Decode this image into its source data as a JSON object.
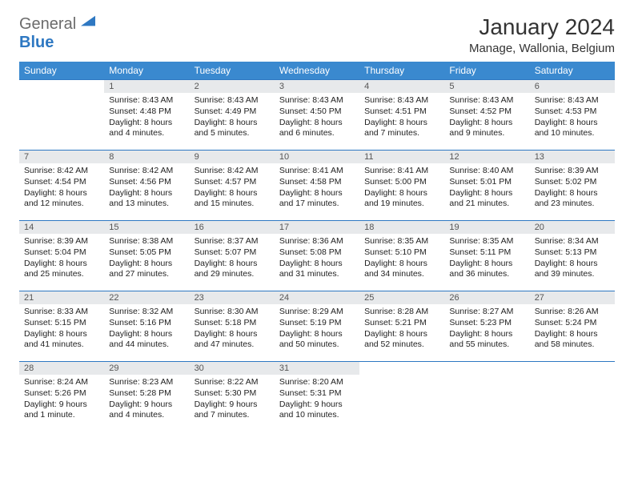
{
  "logo": {
    "general": "General",
    "blue": "Blue"
  },
  "title": "January 2024",
  "location": "Manage, Wallonia, Belgium",
  "header_color": "#3a89cf",
  "accent_line_color": "#2e78c2",
  "daynum_bg": "#e7e9eb",
  "weekdays": [
    "Sunday",
    "Monday",
    "Tuesday",
    "Wednesday",
    "Thursday",
    "Friday",
    "Saturday"
  ],
  "columns": 7,
  "first_day_offset": 1,
  "days": [
    {
      "n": "1",
      "sr": "Sunrise: 8:43 AM",
      "ss": "Sunset: 4:48 PM",
      "dl": "Daylight: 8 hours and 4 minutes."
    },
    {
      "n": "2",
      "sr": "Sunrise: 8:43 AM",
      "ss": "Sunset: 4:49 PM",
      "dl": "Daylight: 8 hours and 5 minutes."
    },
    {
      "n": "3",
      "sr": "Sunrise: 8:43 AM",
      "ss": "Sunset: 4:50 PM",
      "dl": "Daylight: 8 hours and 6 minutes."
    },
    {
      "n": "4",
      "sr": "Sunrise: 8:43 AM",
      "ss": "Sunset: 4:51 PM",
      "dl": "Daylight: 8 hours and 7 minutes."
    },
    {
      "n": "5",
      "sr": "Sunrise: 8:43 AM",
      "ss": "Sunset: 4:52 PM",
      "dl": "Daylight: 8 hours and 9 minutes."
    },
    {
      "n": "6",
      "sr": "Sunrise: 8:43 AM",
      "ss": "Sunset: 4:53 PM",
      "dl": "Daylight: 8 hours and 10 minutes."
    },
    {
      "n": "7",
      "sr": "Sunrise: 8:42 AM",
      "ss": "Sunset: 4:54 PM",
      "dl": "Daylight: 8 hours and 12 minutes."
    },
    {
      "n": "8",
      "sr": "Sunrise: 8:42 AM",
      "ss": "Sunset: 4:56 PM",
      "dl": "Daylight: 8 hours and 13 minutes."
    },
    {
      "n": "9",
      "sr": "Sunrise: 8:42 AM",
      "ss": "Sunset: 4:57 PM",
      "dl": "Daylight: 8 hours and 15 minutes."
    },
    {
      "n": "10",
      "sr": "Sunrise: 8:41 AM",
      "ss": "Sunset: 4:58 PM",
      "dl": "Daylight: 8 hours and 17 minutes."
    },
    {
      "n": "11",
      "sr": "Sunrise: 8:41 AM",
      "ss": "Sunset: 5:00 PM",
      "dl": "Daylight: 8 hours and 19 minutes."
    },
    {
      "n": "12",
      "sr": "Sunrise: 8:40 AM",
      "ss": "Sunset: 5:01 PM",
      "dl": "Daylight: 8 hours and 21 minutes."
    },
    {
      "n": "13",
      "sr": "Sunrise: 8:39 AM",
      "ss": "Sunset: 5:02 PM",
      "dl": "Daylight: 8 hours and 23 minutes."
    },
    {
      "n": "14",
      "sr": "Sunrise: 8:39 AM",
      "ss": "Sunset: 5:04 PM",
      "dl": "Daylight: 8 hours and 25 minutes."
    },
    {
      "n": "15",
      "sr": "Sunrise: 8:38 AM",
      "ss": "Sunset: 5:05 PM",
      "dl": "Daylight: 8 hours and 27 minutes."
    },
    {
      "n": "16",
      "sr": "Sunrise: 8:37 AM",
      "ss": "Sunset: 5:07 PM",
      "dl": "Daylight: 8 hours and 29 minutes."
    },
    {
      "n": "17",
      "sr": "Sunrise: 8:36 AM",
      "ss": "Sunset: 5:08 PM",
      "dl": "Daylight: 8 hours and 31 minutes."
    },
    {
      "n": "18",
      "sr": "Sunrise: 8:35 AM",
      "ss": "Sunset: 5:10 PM",
      "dl": "Daylight: 8 hours and 34 minutes."
    },
    {
      "n": "19",
      "sr": "Sunrise: 8:35 AM",
      "ss": "Sunset: 5:11 PM",
      "dl": "Daylight: 8 hours and 36 minutes."
    },
    {
      "n": "20",
      "sr": "Sunrise: 8:34 AM",
      "ss": "Sunset: 5:13 PM",
      "dl": "Daylight: 8 hours and 39 minutes."
    },
    {
      "n": "21",
      "sr": "Sunrise: 8:33 AM",
      "ss": "Sunset: 5:15 PM",
      "dl": "Daylight: 8 hours and 41 minutes."
    },
    {
      "n": "22",
      "sr": "Sunrise: 8:32 AM",
      "ss": "Sunset: 5:16 PM",
      "dl": "Daylight: 8 hours and 44 minutes."
    },
    {
      "n": "23",
      "sr": "Sunrise: 8:30 AM",
      "ss": "Sunset: 5:18 PM",
      "dl": "Daylight: 8 hours and 47 minutes."
    },
    {
      "n": "24",
      "sr": "Sunrise: 8:29 AM",
      "ss": "Sunset: 5:19 PM",
      "dl": "Daylight: 8 hours and 50 minutes."
    },
    {
      "n": "25",
      "sr": "Sunrise: 8:28 AM",
      "ss": "Sunset: 5:21 PM",
      "dl": "Daylight: 8 hours and 52 minutes."
    },
    {
      "n": "26",
      "sr": "Sunrise: 8:27 AM",
      "ss": "Sunset: 5:23 PM",
      "dl": "Daylight: 8 hours and 55 minutes."
    },
    {
      "n": "27",
      "sr": "Sunrise: 8:26 AM",
      "ss": "Sunset: 5:24 PM",
      "dl": "Daylight: 8 hours and 58 minutes."
    },
    {
      "n": "28",
      "sr": "Sunrise: 8:24 AM",
      "ss": "Sunset: 5:26 PM",
      "dl": "Daylight: 9 hours and 1 minute."
    },
    {
      "n": "29",
      "sr": "Sunrise: 8:23 AM",
      "ss": "Sunset: 5:28 PM",
      "dl": "Daylight: 9 hours and 4 minutes."
    },
    {
      "n": "30",
      "sr": "Sunrise: 8:22 AM",
      "ss": "Sunset: 5:30 PM",
      "dl": "Daylight: 9 hours and 7 minutes."
    },
    {
      "n": "31",
      "sr": "Sunrise: 8:20 AM",
      "ss": "Sunset: 5:31 PM",
      "dl": "Daylight: 9 hours and 10 minutes."
    }
  ]
}
